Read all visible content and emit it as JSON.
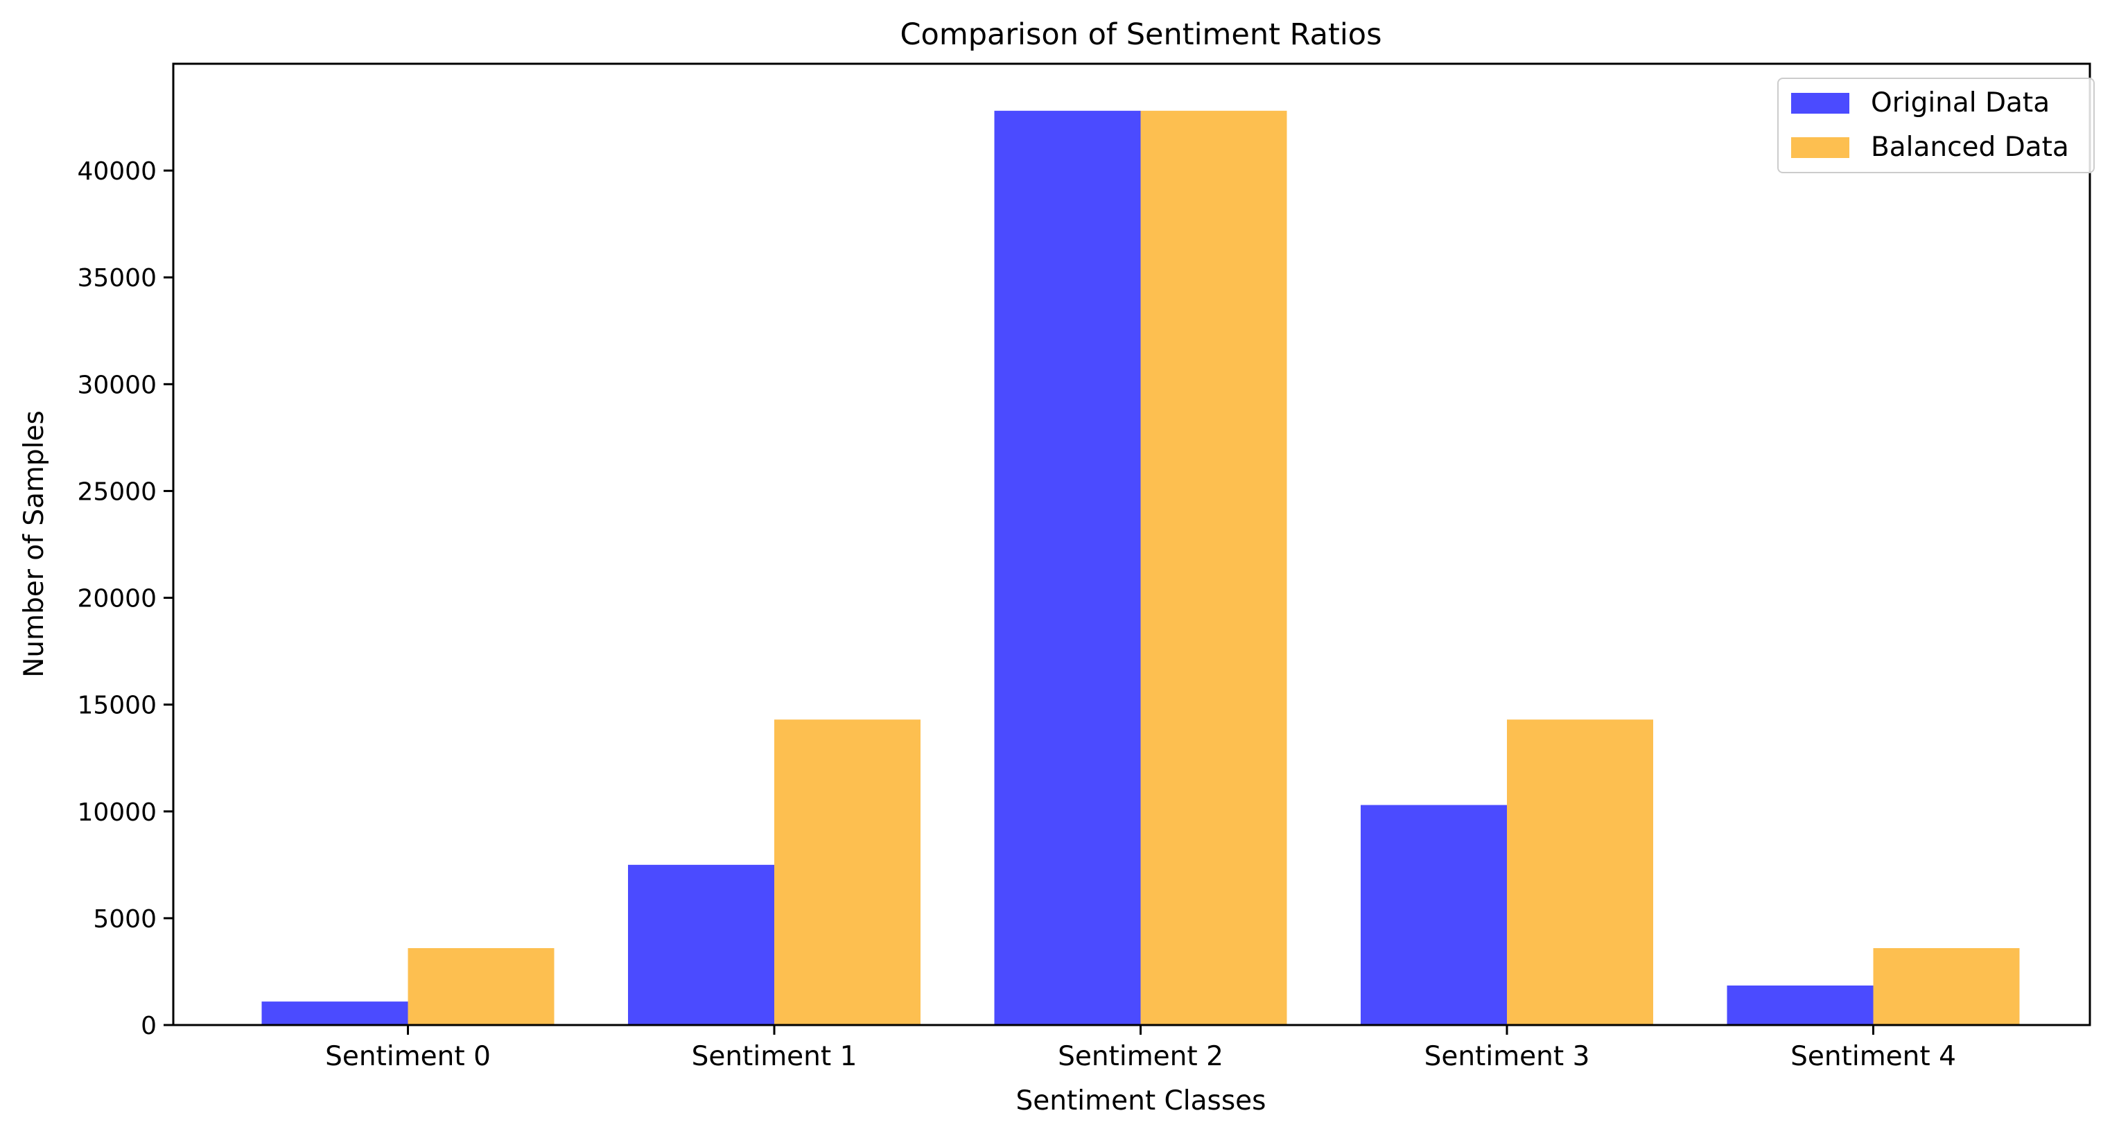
{
  "chart_data": {
    "type": "bar",
    "title": "Comparison of Sentiment Ratios",
    "xlabel": "Sentiment Classes",
    "ylabel": "Number of Samples",
    "categories": [
      "Sentiment 0",
      "Sentiment 1",
      "Sentiment 2",
      "Sentiment 3",
      "Sentiment 4"
    ],
    "series": [
      {
        "name": "Original Data",
        "color": "#4b4bff",
        "values": [
          1100,
          7500,
          42800,
          10300,
          1850
        ]
      },
      {
        "name": "Balanced Data",
        "color": "#fdbf50",
        "values": [
          3600,
          14300,
          42800,
          14300,
          3600
        ]
      }
    ],
    "ylim": [
      0,
      45000
    ],
    "yticks": [
      0,
      5000,
      10000,
      15000,
      20000,
      25000,
      30000,
      35000,
      40000
    ],
    "grid": false,
    "legend_position": "top-right"
  }
}
